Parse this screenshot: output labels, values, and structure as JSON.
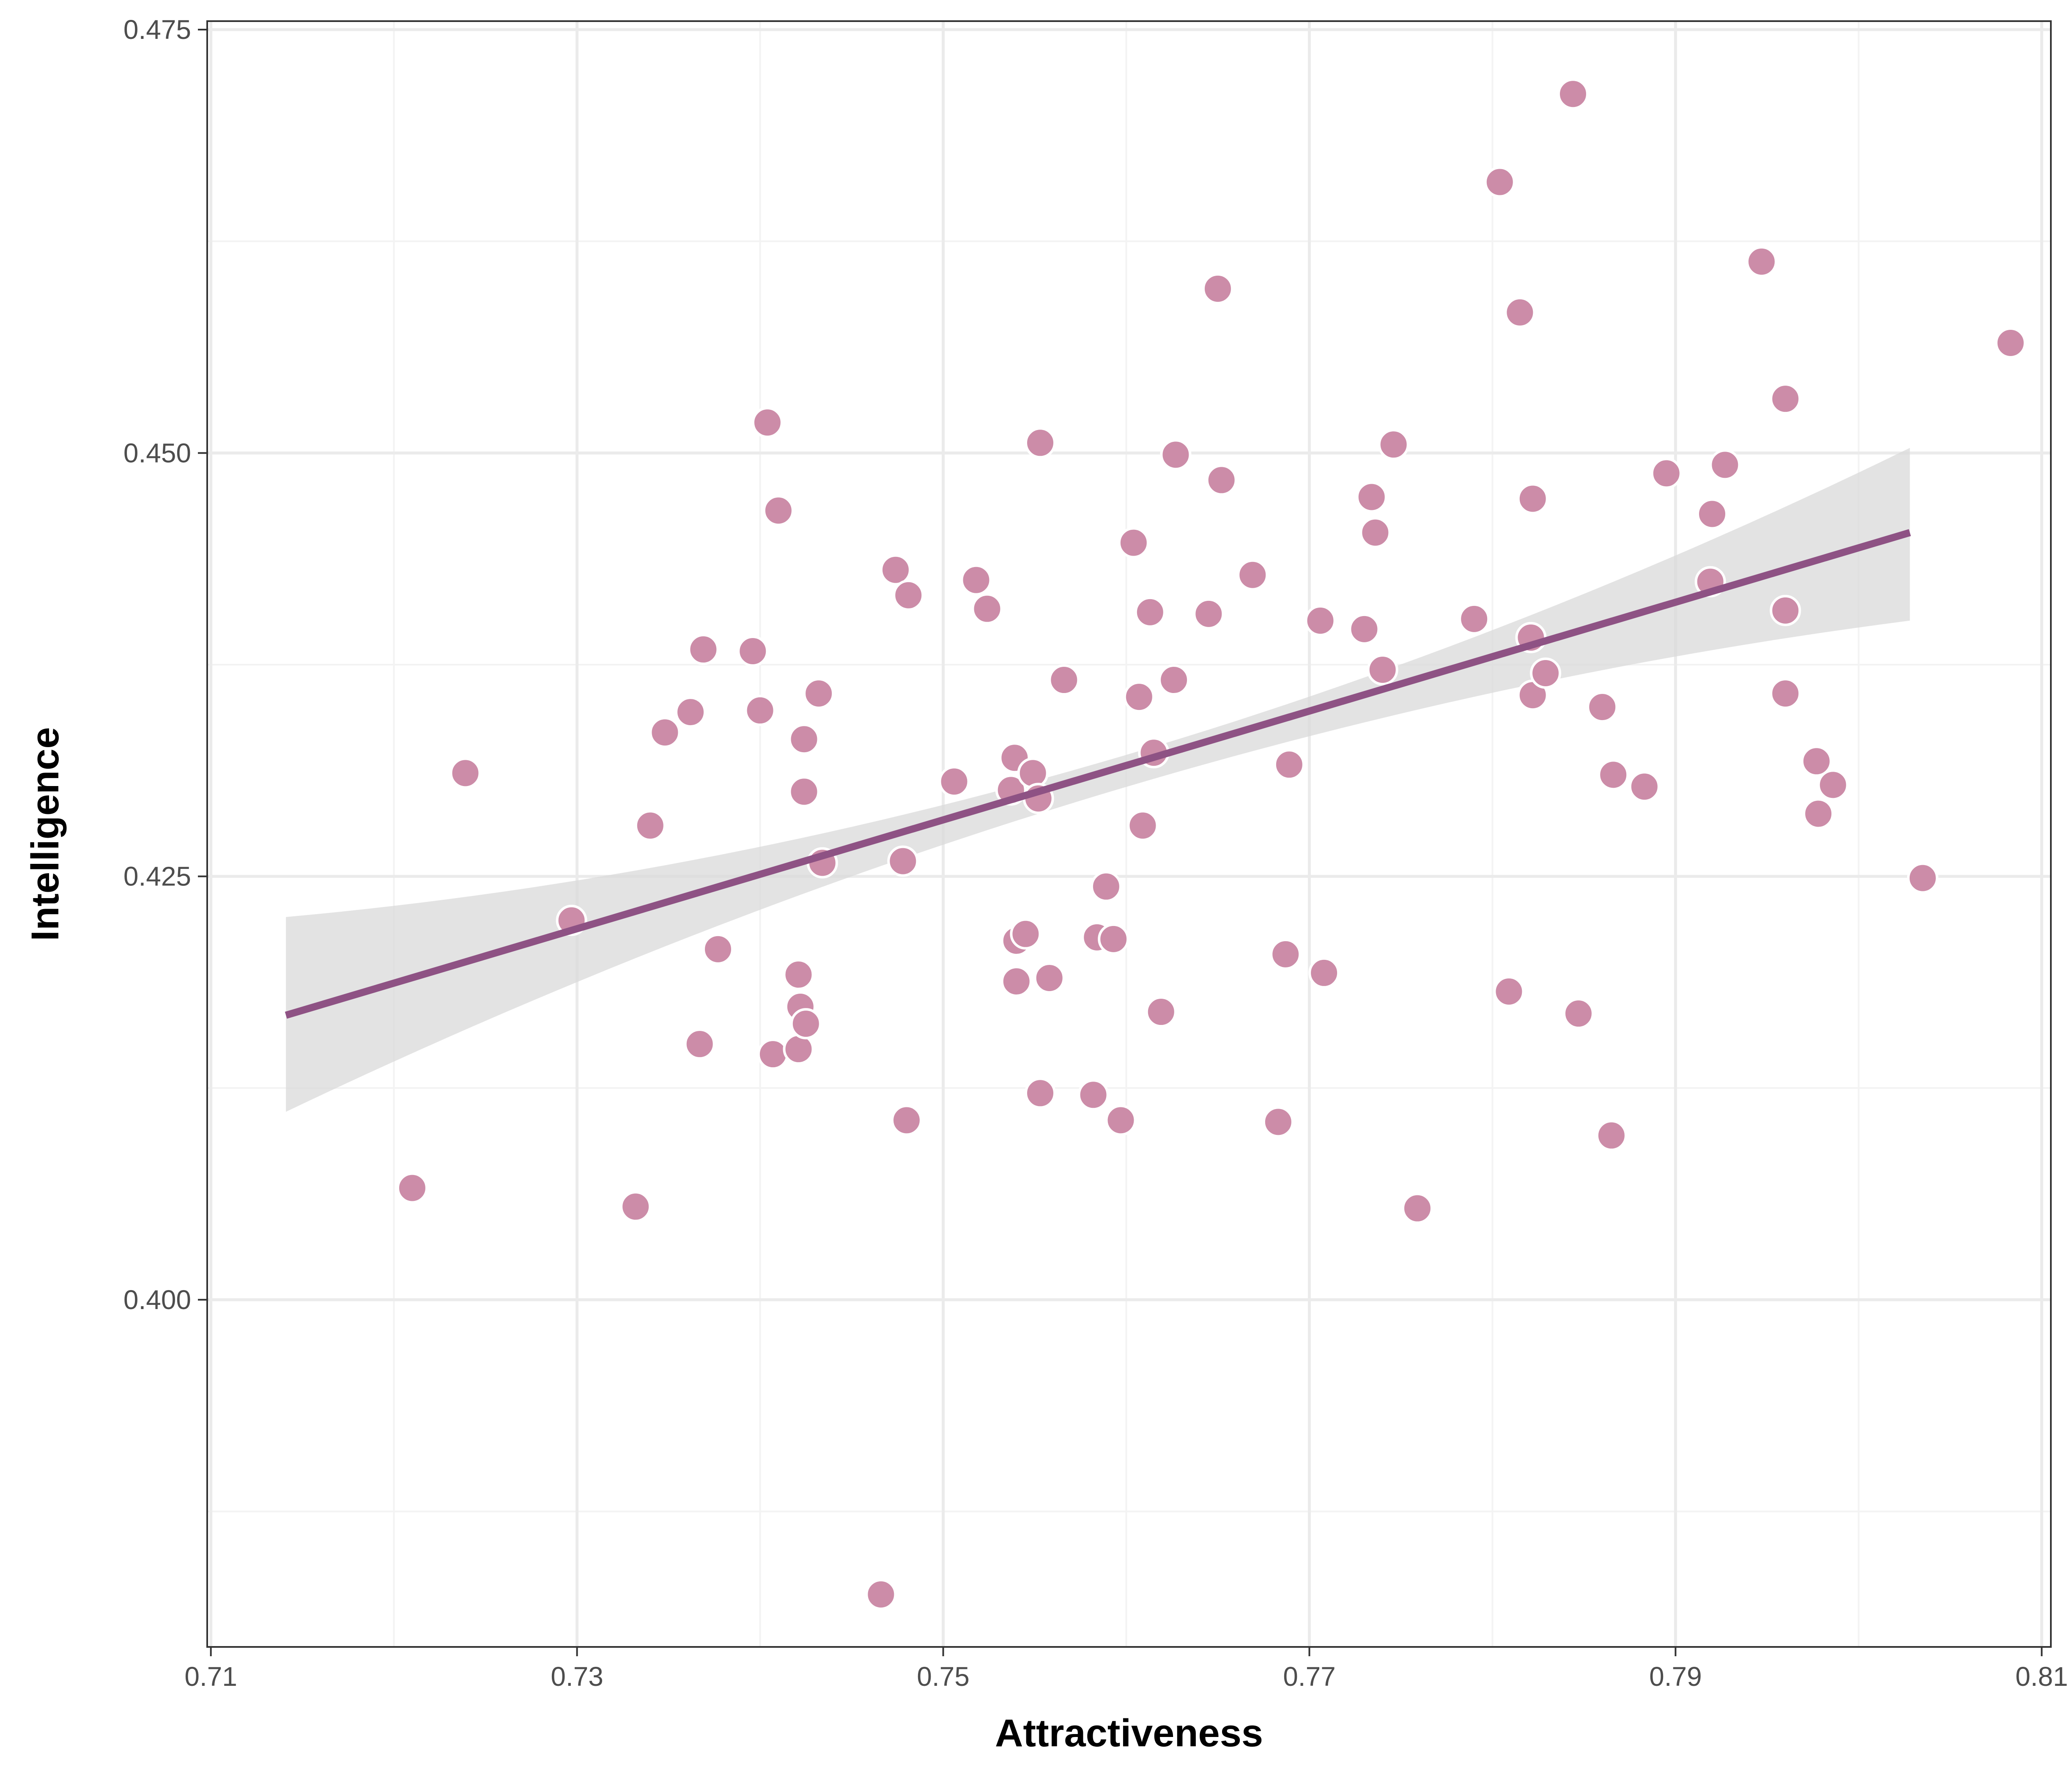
{
  "chart_data": {
    "type": "scatter",
    "title": "",
    "xlabel": "Attractiveness",
    "ylabel": "Intelligence",
    "xlim": [
      0.7098,
      0.8105
    ],
    "ylim": [
      0.3795,
      0.4755
    ],
    "x_ticks": [
      "0.71",
      "0.73",
      "0.75",
      "0.77",
      "0.79",
      "0.81"
    ],
    "y_ticks": [
      "0.400",
      "0.425",
      "0.450",
      "0.475"
    ],
    "grid": true,
    "legend": "none",
    "colors": {
      "points": "#cc8ca8",
      "point_outline": "#ffffff",
      "trend_line": "#8e5284",
      "confidence_band": "#d9d9d9",
      "grid_major": "#ebebeb",
      "grid_minor": "#f3f3f3",
      "axis": "#333333"
    },
    "trend_line": {
      "type": "linear",
      "x": [
        0.7141,
        0.8028
      ],
      "y": [
        0.4168,
        0.4453
      ]
    },
    "confidence_band": {
      "x": [
        0.7141,
        0.7585,
        0.8028
      ],
      "upper": [
        0.4226,
        0.4317,
        0.4503
      ],
      "lower": [
        0.4111,
        0.4298,
        0.4401
      ]
    },
    "points": [
      [
        0.721,
        0.4066
      ],
      [
        0.7239,
        0.4311
      ],
      [
        0.7297,
        0.4224
      ],
      [
        0.7332,
        0.4055
      ],
      [
        0.734,
        0.428
      ],
      [
        0.7348,
        0.4335
      ],
      [
        0.7362,
        0.4347
      ],
      [
        0.7367,
        0.4151
      ],
      [
        0.7369,
        0.4384
      ],
      [
        0.7377,
        0.4207
      ],
      [
        0.7396,
        0.4383
      ],
      [
        0.74,
        0.4348
      ],
      [
        0.7404,
        0.4518
      ],
      [
        0.7407,
        0.4145
      ],
      [
        0.741,
        0.4466
      ],
      [
        0.7421,
        0.4192
      ],
      [
        0.7421,
        0.4148
      ],
      [
        0.7422,
        0.4173
      ],
      [
        0.7424,
        0.4331
      ],
      [
        0.7424,
        0.43
      ],
      [
        0.7425,
        0.4163
      ],
      [
        0.7432,
        0.4358
      ],
      [
        0.7434,
        0.4258
      ],
      [
        0.7466,
        0.3826
      ],
      [
        0.7474,
        0.4431
      ],
      [
        0.7478,
        0.4259
      ],
      [
        0.748,
        0.4106
      ],
      [
        0.7481,
        0.4416
      ],
      [
        0.7506,
        0.4306
      ],
      [
        0.7518,
        0.4425
      ],
      [
        0.7524,
        0.4408
      ],
      [
        0.7537,
        0.4301
      ],
      [
        0.7539,
        0.432
      ],
      [
        0.754,
        0.4212
      ],
      [
        0.754,
        0.4188
      ],
      [
        0.7545,
        0.4216
      ],
      [
        0.7549,
        0.4311
      ],
      [
        0.7552,
        0.4296
      ],
      [
        0.7553,
        0.4122
      ],
      [
        0.7553,
        0.4506
      ],
      [
        0.7558,
        0.419
      ],
      [
        0.7566,
        0.4366
      ],
      [
        0.7582,
        0.4121
      ],
      [
        0.7584,
        0.4214
      ],
      [
        0.7589,
        0.4244
      ],
      [
        0.7593,
        0.4213
      ],
      [
        0.7597,
        0.4106
      ],
      [
        0.7604,
        0.4447
      ],
      [
        0.7607,
        0.4356
      ],
      [
        0.7609,
        0.428
      ],
      [
        0.7613,
        0.4406
      ],
      [
        0.7615,
        0.4323
      ],
      [
        0.7619,
        0.417
      ],
      [
        0.7626,
        0.4366
      ],
      [
        0.7627,
        0.4499
      ],
      [
        0.7645,
        0.4405
      ],
      [
        0.765,
        0.4597
      ],
      [
        0.7652,
        0.4484
      ],
      [
        0.7669,
        0.4428
      ],
      [
        0.7683,
        0.4105
      ],
      [
        0.7687,
        0.4204
      ],
      [
        0.7689,
        0.4316
      ],
      [
        0.7706,
        0.4401
      ],
      [
        0.7708,
        0.4193
      ],
      [
        0.773,
        0.4396
      ],
      [
        0.7734,
        0.4474
      ],
      [
        0.7736,
        0.4453
      ],
      [
        0.774,
        0.4372
      ],
      [
        0.7746,
        0.4505
      ],
      [
        0.7759,
        0.4054
      ],
      [
        0.779,
        0.4402
      ],
      [
        0.7804,
        0.466
      ],
      [
        0.7809,
        0.4182
      ],
      [
        0.7815,
        0.4583
      ],
      [
        0.7821,
        0.4391
      ],
      [
        0.7822,
        0.4473
      ],
      [
        0.7822,
        0.4357
      ],
      [
        0.7829,
        0.437
      ],
      [
        0.7844,
        0.4712
      ],
      [
        0.7847,
        0.4169
      ],
      [
        0.786,
        0.435
      ],
      [
        0.7865,
        0.4097
      ],
      [
        0.7866,
        0.431
      ],
      [
        0.7883,
        0.4303
      ],
      [
        0.7895,
        0.4488
      ],
      [
        0.7919,
        0.4424
      ],
      [
        0.792,
        0.4464
      ],
      [
        0.7927,
        0.4493
      ],
      [
        0.7947,
        0.4613
      ],
      [
        0.796,
        0.4532
      ],
      [
        0.796,
        0.4407
      ],
      [
        0.796,
        0.4358
      ],
      [
        0.7977,
        0.4318
      ],
      [
        0.7978,
        0.4287
      ],
      [
        0.7986,
        0.4304
      ],
      [
        0.8035,
        0.4249
      ],
      [
        0.8083,
        0.4565
      ]
    ]
  }
}
